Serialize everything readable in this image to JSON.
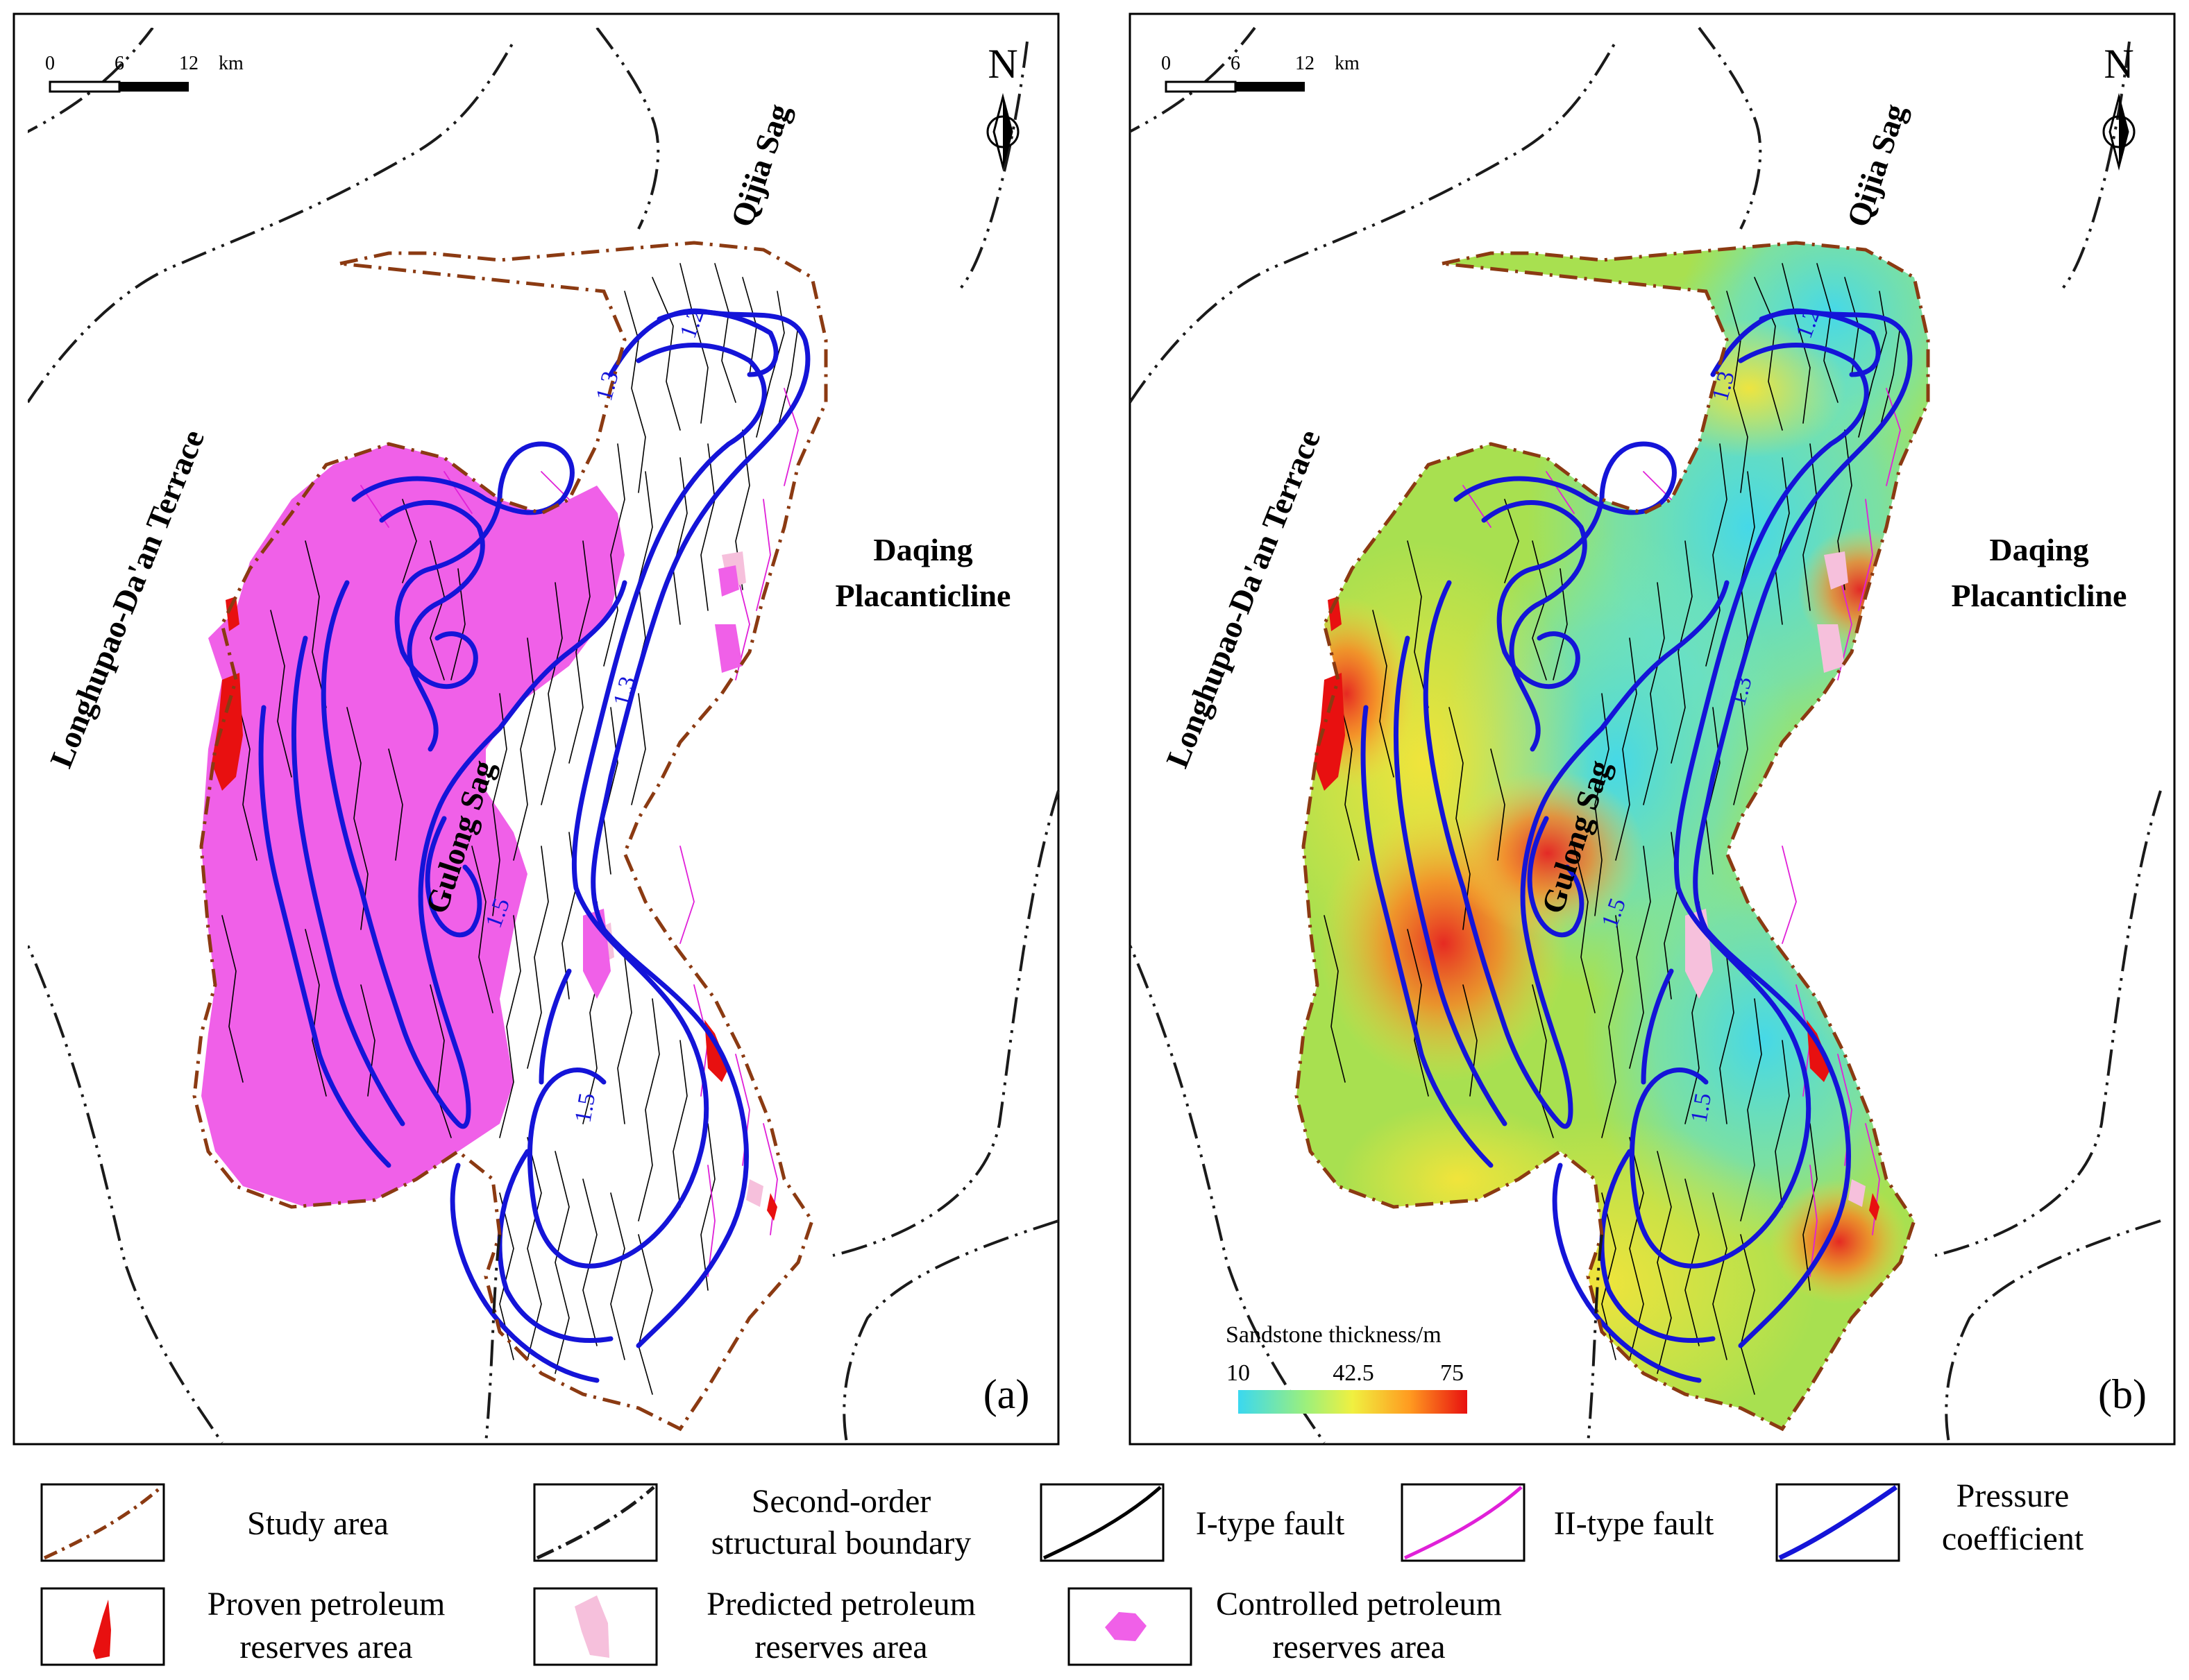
{
  "colors": {
    "study_area": "#8b3a12",
    "boundary": "#1a1a1a",
    "fault1": "#000000",
    "fault2": "#e020d8",
    "pressure": "#1414d8",
    "proven": "#e81010",
    "predicted": "#f6c0dc",
    "controlled": "#f060e8"
  },
  "panel_a": {
    "letter": "(a)",
    "scale": {
      "t0": "0",
      "t1": "6",
      "t2": "12",
      "unit": "km"
    },
    "north": "N",
    "labels": {
      "terrace": "Longhupao-Da'an Terrace",
      "qijia": "Qijia Sag",
      "daqing_1": "Daqing",
      "daqing_2": "Placanticline",
      "gulong": "Gulong Sag"
    },
    "contours": {
      "c1": "1.2",
      "c2": "1.3",
      "c3": "1.5",
      "c4": "1.5",
      "c5": "1.3"
    }
  },
  "panel_b": {
    "letter": "(b)",
    "scale": {
      "t0": "0",
      "t1": "6",
      "t2": "12",
      "unit": "km"
    },
    "north": "N",
    "labels": {
      "terrace": "Longhupao-Da'an Terrace",
      "qijia": "Qijia Sag",
      "daqing_1": "Daqing",
      "daqing_2": "Placanticline",
      "gulong": "Gulong Sag"
    },
    "contours": {
      "c1": "1.2",
      "c2": "1.3",
      "c3": "1.5",
      "c4": "1.5",
      "c5": "1.3"
    },
    "colorbar": {
      "title": "Sandstone thickness/m",
      "min": "10",
      "mid": "42.5",
      "max": "75"
    }
  },
  "legend": {
    "study_area": "Study area",
    "boundary_1": "Second-order",
    "boundary_2": "structural boundary",
    "fault1": "I-type fault",
    "fault2": "II-type fault",
    "pressure_1": "Pressure",
    "pressure_2": "coefficient",
    "proven_1": "Proven petroleum",
    "proven_2": "reserves area",
    "predicted_1": "Predicted petroleum",
    "predicted_2": "reserves area",
    "controlled_1": "Controlled petroleum",
    "controlled_2": "reserves area"
  }
}
